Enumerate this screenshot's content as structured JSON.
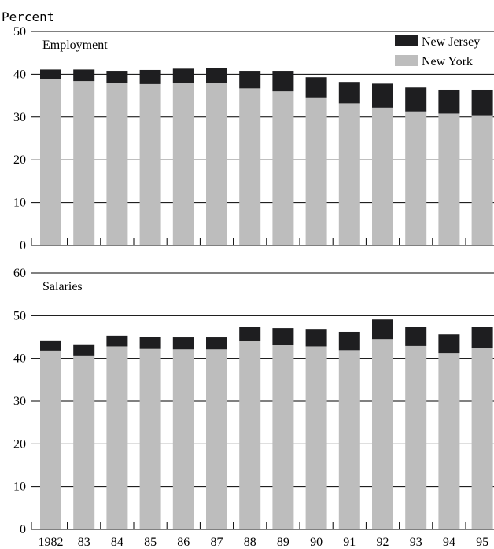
{
  "y_label": "Percent",
  "colors": {
    "nj": "#1e1e20",
    "ny": "#bdbdbd",
    "grid": "#000000"
  },
  "chart_data": [
    {
      "type": "bar",
      "stacked": true,
      "title": "Employment",
      "categories": [
        "1982",
        "83",
        "84",
        "85",
        "86",
        "87",
        "88",
        "89",
        "90",
        "91",
        "92",
        "93",
        "94",
        "95"
      ],
      "series": [
        {
          "name": "New York",
          "values": [
            38.8,
            38.4,
            38.0,
            37.7,
            37.9,
            37.9,
            36.7,
            36.0,
            34.6,
            33.2,
            32.2,
            31.3,
            30.8,
            30.4
          ]
        },
        {
          "name": "New Jersey",
          "values": [
            2.3,
            2.7,
            2.8,
            3.3,
            3.4,
            3.6,
            4.1,
            4.8,
            4.7,
            5.0,
            5.6,
            5.6,
            5.6,
            6.0
          ]
        }
      ],
      "ylim": [
        0,
        50
      ],
      "yticks": [
        "0",
        "10",
        "20",
        "30",
        "40",
        "50"
      ],
      "grid": true,
      "legend": "top-right"
    },
    {
      "type": "bar",
      "stacked": true,
      "title": "Salaries",
      "categories": [
        "1982",
        "83",
        "84",
        "85",
        "86",
        "87",
        "88",
        "89",
        "90",
        "91",
        "92",
        "93",
        "94",
        "95"
      ],
      "series": [
        {
          "name": "New York",
          "values": [
            41.8,
            40.7,
            42.8,
            42.2,
            42.1,
            42.1,
            44.1,
            43.2,
            42.8,
            41.9,
            44.5,
            42.9,
            41.2,
            42.5
          ]
        },
        {
          "name": "New Jersey",
          "values": [
            2.4,
            2.6,
            2.5,
            2.8,
            2.8,
            2.8,
            3.2,
            3.9,
            4.1,
            4.3,
            4.6,
            4.4,
            4.4,
            4.8
          ]
        }
      ],
      "ylim": [
        0,
        60
      ],
      "yticks": [
        "0",
        "10",
        "20",
        "30",
        "40",
        "50",
        "60"
      ],
      "grid": true
    }
  ]
}
